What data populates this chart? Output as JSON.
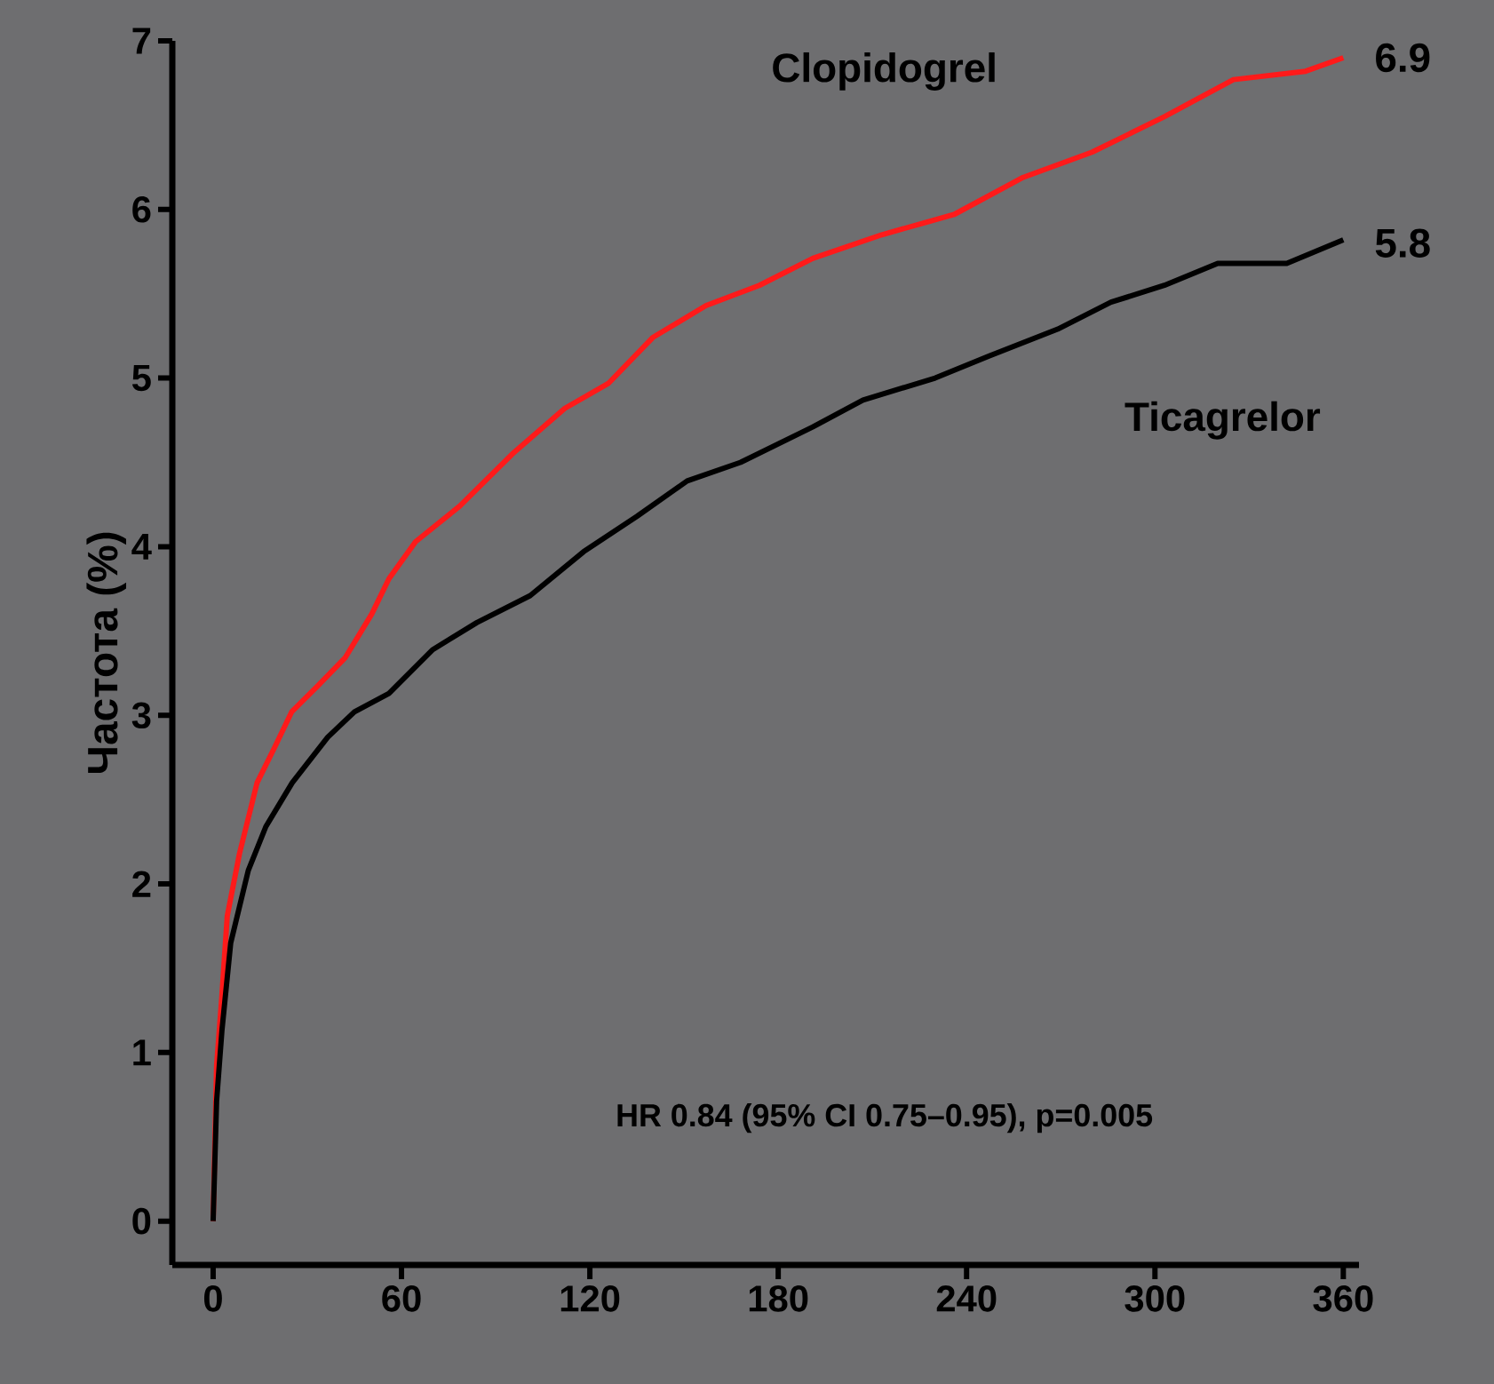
{
  "chart_data": {
    "type": "line",
    "ylabel": "Частота  (%)",
    "xlim": [
      -13,
      365
    ],
    "ylim": [
      -0.26,
      7
    ],
    "xticks": [
      0,
      60,
      120,
      180,
      240,
      300,
      360
    ],
    "yticks": [
      0,
      1,
      2,
      3,
      4,
      5,
      6,
      7
    ],
    "grid": false,
    "marker": "none",
    "line_style": "solid",
    "series": [
      {
        "name": "Clopidogrel",
        "color": "#ff1a1a",
        "x": [
          0,
          1.1,
          2.8,
          4.5,
          8.4,
          14,
          19.6,
          25,
          33.6,
          42,
          50.5,
          56,
          64.5,
          78.5,
          95.3,
          112,
          126,
          140,
          157,
          174,
          191,
          213,
          236,
          258,
          280,
          303,
          325,
          348,
          360
        ],
        "values": [
          0,
          0.92,
          1.34,
          1.81,
          2.18,
          2.6,
          2.81,
          3.02,
          3.18,
          3.34,
          3.6,
          3.81,
          4.03,
          4.24,
          4.55,
          4.82,
          4.97,
          5.24,
          5.43,
          5.55,
          5.71,
          5.85,
          5.97,
          6.19,
          6.34,
          6.55,
          6.77,
          6.82,
          6.9
        ]
      },
      {
        "name": "Ticagrelor",
        "color": "#000000",
        "x": [
          0,
          1.1,
          2.8,
          5.6,
          11.2,
          16.8,
          25.2,
          36.5,
          45,
          56,
          70,
          84,
          101,
          118,
          135,
          151,
          168,
          191,
          207,
          230,
          247,
          269,
          286,
          303,
          320,
          342,
          360
        ],
        "values": [
          0,
          0.71,
          1.13,
          1.65,
          2.08,
          2.34,
          2.6,
          2.87,
          3.02,
          3.13,
          3.39,
          3.55,
          3.71,
          3.97,
          4.18,
          4.39,
          4.5,
          4.71,
          4.87,
          5.0,
          5.13,
          5.29,
          5.45,
          5.55,
          5.68,
          5.68,
          5.82
        ]
      }
    ],
    "annotations": [
      {
        "text": "6.9",
        "x": 360,
        "y": 6.9
      },
      {
        "text": "5.8",
        "x": 360,
        "y": 5.8
      },
      "HR 0.84 (95% CI 0.75–0.95), p=0.005"
    ]
  }
}
